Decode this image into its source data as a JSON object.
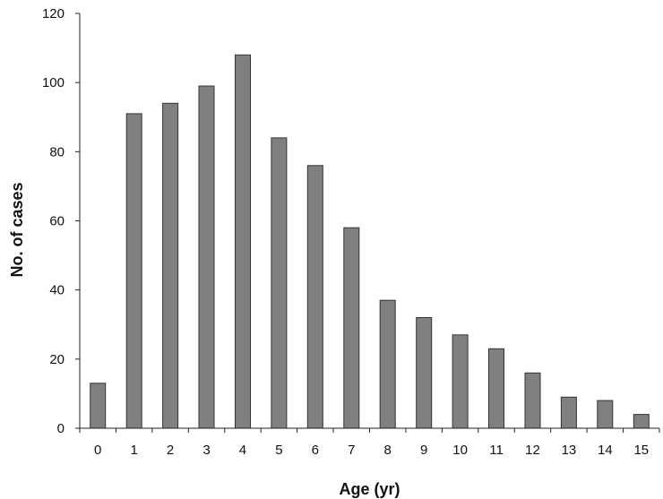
{
  "chart_data": {
    "type": "bar",
    "title": "",
    "xlabel": "Age (yr)",
    "ylabel": "No. of cases",
    "categories": [
      "0",
      "1",
      "2",
      "3",
      "4",
      "5",
      "6",
      "7",
      "8",
      "9",
      "10",
      "11",
      "12",
      "13",
      "14",
      "15"
    ],
    "values": [
      13,
      91,
      94,
      99,
      108,
      84,
      76,
      58,
      37,
      32,
      27,
      23,
      16,
      9,
      8,
      4
    ],
    "ylim": [
      0,
      120
    ],
    "yticks": [
      "0",
      "20",
      "40",
      "60",
      "80",
      "100",
      "120"
    ],
    "grid": false,
    "bar_color": "#808080"
  }
}
